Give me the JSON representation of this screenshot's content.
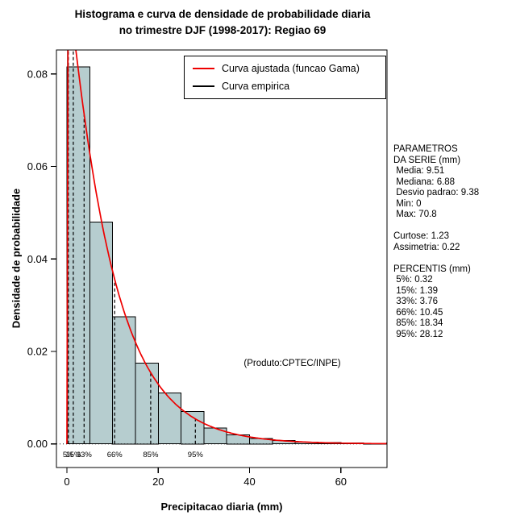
{
  "side_panel": {
    "lines": [
      "PARAMETROS",
      "DA SERIE (mm)",
      " Media: 9.51",
      " Mediana: 6.88",
      " Desvio padrao: 9.38",
      " Min: 0",
      " Max: 70.8",
      "",
      "Curtose: 1.23",
      "Assimetria: 0.22",
      "",
      "PERCENTIS (mm)",
      " 5%: 0.32",
      " 15%: 1.39",
      " 33%: 3.76",
      " 66%: 10.45",
      " 85%: 18.34",
      " 95%: 28.12"
    ]
  },
  "chart_data": {
    "type": "bar",
    "subtype": "histogram-with-density",
    "title_lines": [
      "Histograma e curva de densidade de probabilidade diaria",
      "no trimestre DJF (1998-2017): Regiao 69"
    ],
    "xlabel": "Precipitacao diaria (mm)",
    "ylabel": "Densidade de probabilidade",
    "annotation": "(Produto:CPTEC/INPE)",
    "xlim": [
      -2.3,
      70.1
    ],
    "ylim": [
      -0.0051,
      0.0852
    ],
    "x_ticks": [
      {
        "value": 0,
        "label": "0"
      },
      {
        "value": 20,
        "label": "20"
      },
      {
        "value": 40,
        "label": "40"
      },
      {
        "value": 60,
        "label": "60"
      }
    ],
    "y_ticks": [
      {
        "value": 0.0,
        "label": "0.00"
      },
      {
        "value": 0.02,
        "label": "0.02"
      },
      {
        "value": 0.04,
        "label": "0.04"
      },
      {
        "value": 0.06,
        "label": "0.06"
      },
      {
        "value": 0.08,
        "label": "0.08"
      }
    ],
    "bins": {
      "start": 0,
      "width": 5,
      "densities": [
        0.0815,
        0.048,
        0.0275,
        0.0175,
        0.011,
        0.007,
        0.0034,
        0.002,
        0.0012,
        0.0007,
        0.0004,
        0.0003,
        0.0002,
        0.0001,
        0.0002
      ]
    },
    "bar_fill": "#b6cdcf",
    "bar_stroke": "#000000",
    "zero_line": true,
    "fit_curve": {
      "name": "gamma",
      "shape": 1.028,
      "scale": 9.253,
      "norm": 0.1032,
      "x_max": 70,
      "color": "#ee0000"
    },
    "empirical_curve": {
      "color": "#000000",
      "points": [
        [
          0.08,
          0.0
        ],
        [
          0.3,
          0.2
        ]
      ]
    },
    "percentiles": [
      {
        "label": "5%",
        "value": 0.32
      },
      {
        "label": "15%",
        "value": 1.39
      },
      {
        "label": "33%",
        "value": 3.76
      },
      {
        "label": "66%",
        "value": 10.45
      },
      {
        "label": "85%",
        "value": 18.34
      },
      {
        "label": "95%",
        "value": 28.12
      }
    ],
    "legend": {
      "items": [
        {
          "label": "Curva ajustada (funcao Gama)",
          "color": "#ee0000"
        },
        {
          "label": "Curva empirica",
          "color": "#000000"
        }
      ]
    }
  }
}
